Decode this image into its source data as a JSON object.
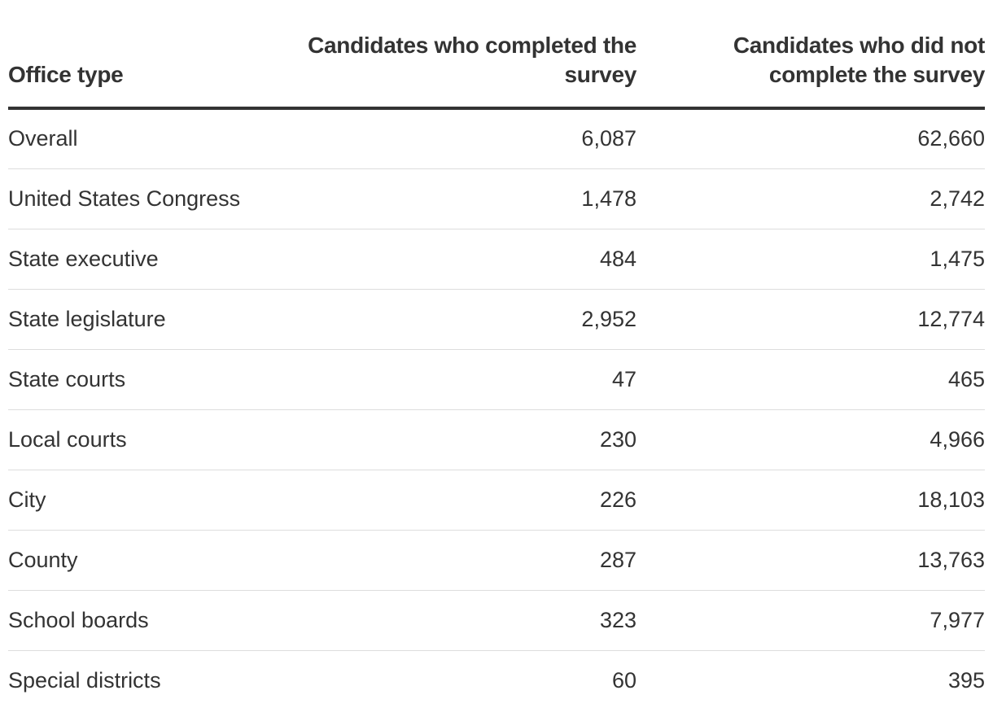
{
  "chart_data": {
    "type": "table",
    "columns": [
      "Office type",
      "Candidates who completed the survey",
      "Candidates who did not complete the survey"
    ],
    "rows": [
      [
        "Overall",
        "6,087",
        "62,660"
      ],
      [
        "United States Congress",
        "1,478",
        "2,742"
      ],
      [
        "State executive",
        "484",
        "1,475"
      ],
      [
        "State legislature",
        "2,952",
        "12,774"
      ],
      [
        "State courts",
        "47",
        "465"
      ],
      [
        "Local courts",
        "230",
        "4,966"
      ],
      [
        "City",
        "226",
        "18,103"
      ],
      [
        "County",
        "287",
        "13,763"
      ],
      [
        "School boards",
        "323",
        "7,977"
      ],
      [
        "Special districts",
        "60",
        "395"
      ]
    ]
  },
  "colors": {
    "text": "#333333",
    "header_rule": "#333333",
    "row_divider": "#dddddd",
    "background": "#ffffff"
  }
}
